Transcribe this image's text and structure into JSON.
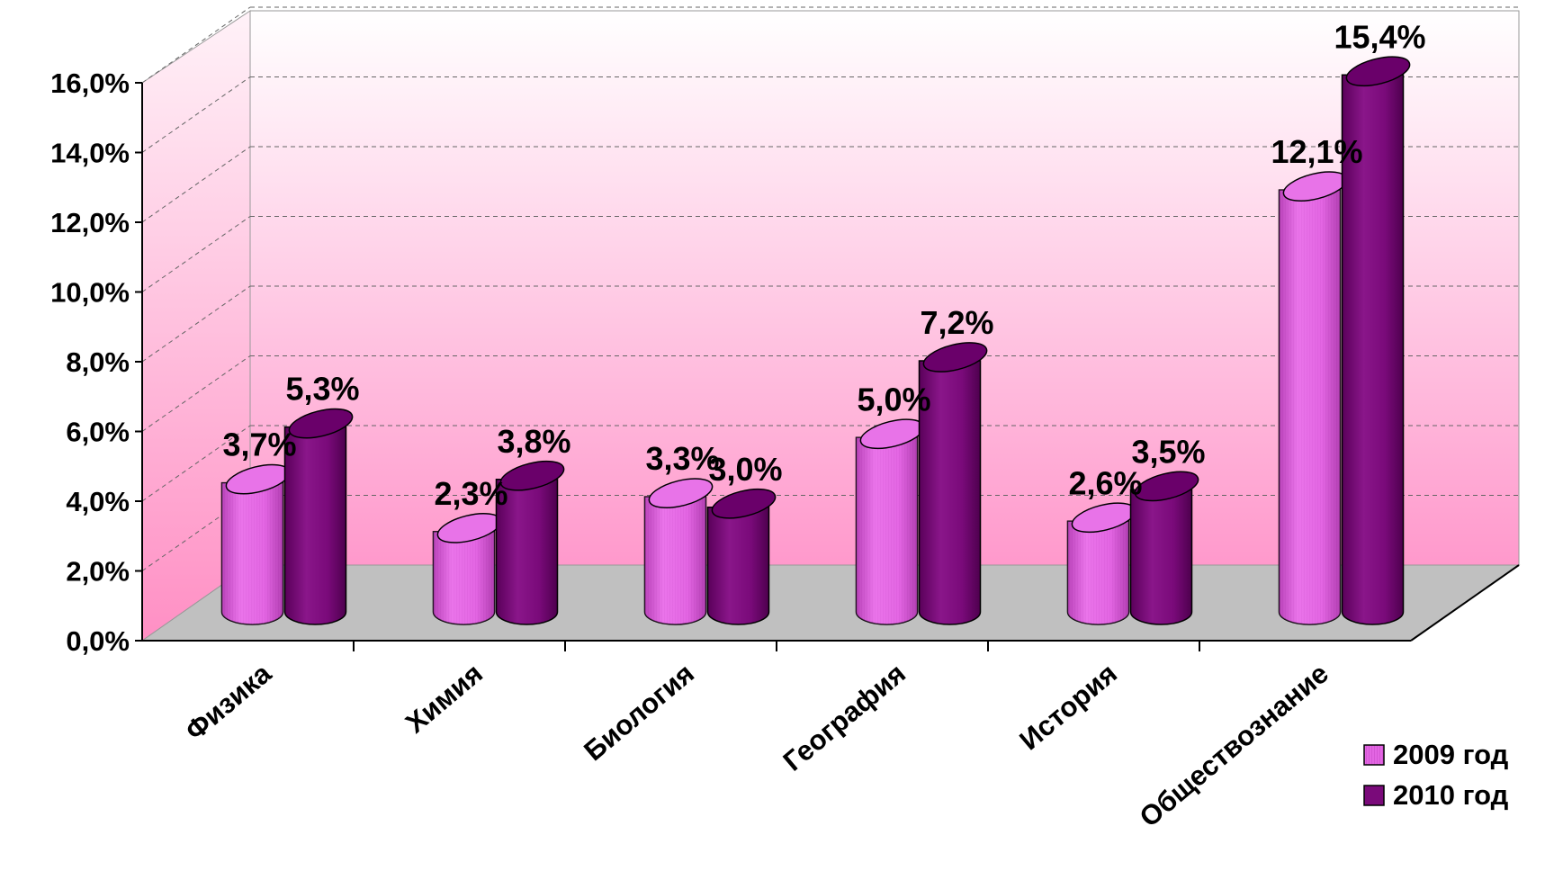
{
  "chart_data": {
    "type": "bar",
    "style": "3d-cylinder",
    "categories": [
      "Физика",
      "Химия",
      "Биология",
      "География",
      "История",
      "Обществознание"
    ],
    "series": [
      {
        "name": "2009 год",
        "values": [
          3.7,
          2.3,
          3.3,
          5.0,
          2.6,
          12.1
        ],
        "labels": [
          "3,7%",
          "2,3%",
          "3,3%",
          "5,0%",
          "2,6%",
          "12,1%"
        ],
        "color": "#E366E3"
      },
      {
        "name": "2010 год",
        "values": [
          5.3,
          3.8,
          3.0,
          7.2,
          3.5,
          15.4
        ],
        "labels": [
          "5,3%",
          "3,8%",
          "3,0%",
          "7,2%",
          "3,5%",
          "15,4%"
        ],
        "color": "#7A0A7A"
      }
    ],
    "y_ticks": [
      {
        "value": 0,
        "label": "0,0%"
      },
      {
        "value": 2,
        "label": "2,0%"
      },
      {
        "value": 4,
        "label": "4,0%"
      },
      {
        "value": 6,
        "label": "6,0%"
      },
      {
        "value": 8,
        "label": "8,0%"
      },
      {
        "value": 10,
        "label": "10,0%"
      },
      {
        "value": 12,
        "label": "12,0%"
      },
      {
        "value": 14,
        "label": "14,0%"
      },
      {
        "value": 16,
        "label": "16,0%"
      }
    ],
    "ylim": [
      0,
      16
    ],
    "grid": true,
    "legend_position": "bottom-right",
    "colors": {
      "wall_top": "#FFFFFF",
      "wall_bottom": "#FF99CC",
      "floor": "#C0C0C0"
    }
  }
}
